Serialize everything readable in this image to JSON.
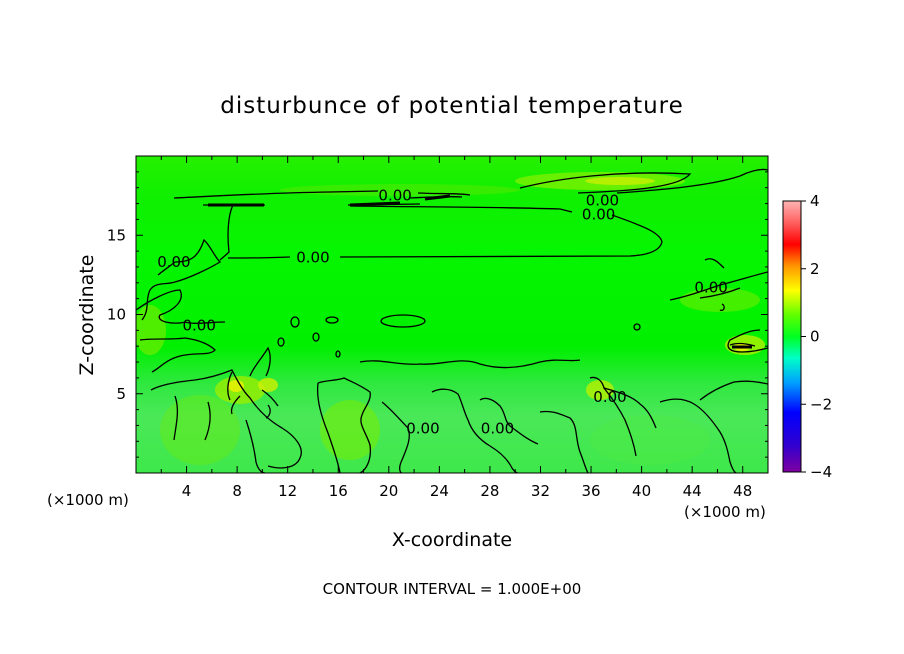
{
  "chart_data": {
    "type": "heatmap",
    "title": "disturbunce of potential temperature",
    "xlabel": "X-coordinate",
    "ylabel": "Z-coordinate",
    "x_unit_note": "(×1000 m)",
    "y_unit_note": "(×1000 m)",
    "xlim": [
      0,
      50
    ],
    "ylim": [
      0,
      20
    ],
    "x_ticks": [
      4,
      8,
      12,
      16,
      20,
      24,
      28,
      32,
      36,
      40,
      44,
      48
    ],
    "y_ticks": [
      5,
      10,
      15
    ],
    "colorbar": {
      "ticks": [
        4,
        2,
        0,
        -2,
        -4
      ],
      "vmin": -4,
      "vmax": 4
    },
    "colorscale": [
      "#7f00a0",
      "#0000ff",
      "#00c8ff",
      "#00ff64",
      "#40ff00",
      "#b4ff00",
      "#ffff00",
      "#ff9600",
      "#ff0000",
      "#ffb4b4"
    ],
    "contour_labels": [
      {
        "text": "0.00",
        "x": 20.5,
        "z": 17.5
      },
      {
        "text": "0.00",
        "x": 36.9,
        "z": 17.2
      },
      {
        "text": "0.00",
        "x": 36.6,
        "z": 16.3
      },
      {
        "text": "0.00",
        "x": 14,
        "z": 13.6
      },
      {
        "text": "0.00",
        "x": 3,
        "z": 13.3
      },
      {
        "text": "0.00",
        "x": 45.5,
        "z": 11.7
      },
      {
        "text": "0.00",
        "x": 5,
        "z": 9.3
      },
      {
        "text": "0.00",
        "x": 37.5,
        "z": 4.8
      },
      {
        "text": "0.00",
        "x": 22.7,
        "z": 2.8
      },
      {
        "text": "0.00",
        "x": 28.6,
        "z": 2.8
      }
    ],
    "footer": "CONTOUR INTERVAL = 1.000E+00"
  }
}
